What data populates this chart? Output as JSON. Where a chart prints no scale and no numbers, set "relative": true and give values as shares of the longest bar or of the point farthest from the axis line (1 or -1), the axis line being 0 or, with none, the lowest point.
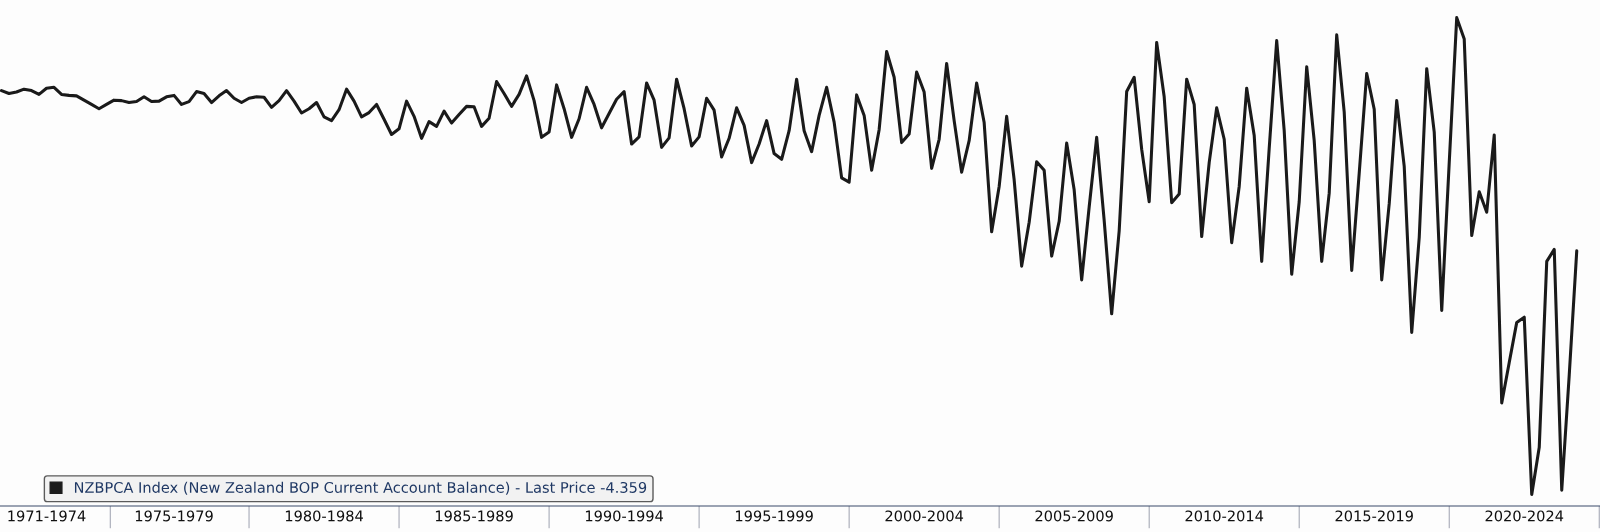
{
  "chart_data": {
    "type": "line",
    "relative": true,
    "grid": false,
    "legend": "bottom left",
    "marker": "none",
    "line_style": "solid",
    "tick_labels": "x",
    "categories": [
      null,
      null,
      null,
      null,
      null,
      null,
      "1971-1974",
      null,
      null,
      null,
      null,
      null,
      null,
      null,
      null,
      null,
      null,
      null,
      null,
      null,
      null,
      null,
      null,
      "1975-1979",
      null,
      null,
      null,
      null,
      null,
      null,
      null,
      null,
      null,
      null,
      null,
      null,
      null,
      null,
      null,
      null,
      null,
      null,
      null,
      "1980-1984",
      null,
      null,
      null,
      null,
      null,
      null,
      null,
      null,
      null,
      null,
      null,
      null,
      null,
      null,
      null,
      null,
      null,
      null,
      null,
      "1985-1989",
      null,
      null,
      null,
      null,
      null,
      null,
      null,
      null,
      null,
      null,
      null,
      null,
      null,
      null,
      null,
      null,
      null,
      null,
      null,
      "1990-1994",
      null,
      null,
      null,
      null,
      null,
      null,
      null,
      null,
      null,
      null,
      null,
      null,
      null,
      null,
      null,
      null,
      null,
      null,
      null,
      "1995-1999",
      null,
      null,
      null,
      null,
      null,
      null,
      null,
      null,
      null,
      null,
      null,
      null,
      null,
      null,
      null,
      null,
      null,
      null,
      null,
      "2000-2004",
      null,
      null,
      null,
      null,
      null,
      null,
      null,
      null,
      null,
      null,
      null,
      null,
      null,
      null,
      null,
      null,
      null,
      null,
      null,
      "2005-2009",
      null,
      null,
      null,
      null,
      null,
      null,
      null,
      null,
      null,
      null,
      null,
      null,
      null,
      null,
      null,
      null,
      null,
      null,
      null,
      "2010-2014",
      null,
      null,
      null,
      null,
      null,
      null,
      null,
      null,
      null,
      null,
      null,
      null,
      null,
      null,
      null,
      null,
      null,
      null,
      null,
      "2015-2019",
      null,
      null,
      null,
      null,
      null,
      null,
      null,
      null,
      null,
      null,
      null,
      null,
      null,
      null,
      null,
      null,
      null,
      null,
      null,
      "2020-2024",
      null,
      null,
      null,
      null,
      null,
      null,
      null
    ],
    "series": [
      {
        "name": "NZBPCA Index (New Zealand BOP Current Account Balance) - Last Price -4.359",
        "color": "#1a1a1a",
        "values": [
          0.847,
          0.841,
          0.844,
          0.85,
          0.847,
          0.839,
          0.852,
          0.854,
          0.839,
          0.837,
          0.836,
          0.827,
          0.818,
          0.809,
          0.818,
          0.827,
          0.826,
          0.822,
          0.824,
          0.834,
          0.824,
          0.825,
          0.834,
          0.837,
          0.818,
          0.824,
          0.845,
          0.841,
          0.822,
          0.836,
          0.847,
          0.831,
          0.822,
          0.831,
          0.834,
          0.833,
          0.812,
          0.826,
          0.847,
          0.825,
          0.8,
          0.809,
          0.822,
          0.792,
          0.784,
          0.807,
          0.85,
          0.825,
          0.792,
          0.801,
          0.818,
          0.787,
          0.755,
          0.767,
          0.825,
          0.793,
          0.747,
          0.782,
          0.772,
          0.804,
          0.779,
          0.797,
          0.814,
          0.813,
          0.772,
          0.789,
          0.866,
          0.841,
          0.814,
          0.839,
          0.878,
          0.826,
          0.749,
          0.76,
          0.859,
          0.809,
          0.749,
          0.788,
          0.854,
          0.818,
          0.769,
          0.799,
          0.829,
          0.845,
          0.735,
          0.75,
          0.863,
          0.827,
          0.728,
          0.748,
          0.871,
          0.809,
          0.731,
          0.75,
          0.831,
          0.806,
          0.708,
          0.747,
          0.811,
          0.774,
          0.696,
          0.735,
          0.784,
          0.715,
          0.703,
          0.763,
          0.871,
          0.763,
          0.719,
          0.795,
          0.854,
          0.781,
          0.664,
          0.655,
          0.838,
          0.795,
          0.68,
          0.765,
          0.929,
          0.875,
          0.738,
          0.756,
          0.886,
          0.844,
          0.684,
          0.745,
          0.904,
          0.784,
          0.676,
          0.742,
          0.863,
          0.78,
          0.551,
          0.646,
          0.793,
          0.66,
          0.479,
          0.571,
          0.698,
          0.68,
          0.5,
          0.573,
          0.737,
          0.639,
          0.45,
          0.603,
          0.749,
          0.575,
          0.379,
          0.553,
          0.845,
          0.875,
          0.724,
          0.614,
          0.948,
          0.834,
          0.612,
          0.63,
          0.871,
          0.818,
          0.541,
          0.696,
          0.811,
          0.745,
          0.528,
          0.646,
          0.852,
          0.753,
          0.489,
          0.726,
          0.952,
          0.763,
          0.462,
          0.614,
          0.897,
          0.742,
          0.489,
          0.632,
          0.964,
          0.802,
          0.47,
          0.674,
          0.883,
          0.808,
          0.45,
          0.61,
          0.826,
          0.688,
          0.34,
          0.539,
          0.893,
          0.76,
          0.386,
          0.696,
          1.0,
          0.955,
          0.543,
          0.635,
          0.592,
          0.754,
          0.192,
          0.277,
          0.361,
          0.372,
          0.0,
          0.099,
          0.489,
          0.514,
          0.009,
          0.251,
          0.511
        ]
      }
    ]
  }
}
